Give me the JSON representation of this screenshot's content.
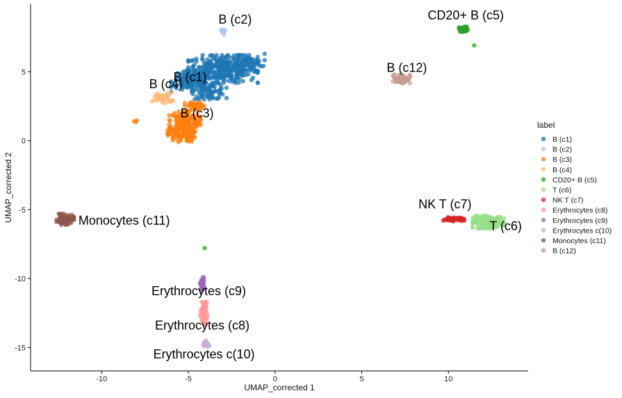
{
  "chart_data": {
    "type": "scatter",
    "xlabel": "UMAP_corrected 1",
    "ylabel": "UMAP_corrected 2",
    "xlim": [
      -14.1,
      14.6
    ],
    "ylim": [
      -16.7,
      9.9
    ],
    "x_ticks": [
      -10,
      -5,
      0,
      5,
      10
    ],
    "y_ticks": [
      -15,
      -10,
      -5,
      0,
      5
    ],
    "grid": false,
    "legend_title": "label",
    "legend_position": "right",
    "clusters": [
      {
        "name": "B (c1)",
        "color": "#1f77b4",
        "label": "B (c1)",
        "label_pos": [
          -4.9,
          4.3
        ],
        "blobs": [
          [
            -3.0,
            5.2,
            2.0,
            1.0,
            320
          ],
          [
            -4.8,
            4.3,
            1.2,
            0.8,
            140
          ],
          [
            -3.8,
            3.6,
            1.0,
            0.6,
            80
          ],
          [
            -1.8,
            5.7,
            1.2,
            0.6,
            60
          ]
        ]
      },
      {
        "name": "B (c2)",
        "color": "#aec7e8",
        "label": "B (c2)",
        "label_pos": [
          -2.3,
          8.5
        ],
        "blobs": [
          [
            -3.0,
            7.9,
            0.15,
            0.25,
            12
          ]
        ]
      },
      {
        "name": "B (c3)",
        "color": "#ff7f0e",
        "label": "B (c3)",
        "label_pos": [
          -4.5,
          1.7
        ],
        "blobs": [
          [
            -5.2,
            1.4,
            0.9,
            0.8,
            160
          ],
          [
            -5.4,
            0.4,
            0.8,
            0.5,
            70
          ],
          [
            -4.6,
            2.5,
            0.6,
            0.3,
            40
          ],
          [
            -8.0,
            1.4,
            0.2,
            0.1,
            3
          ]
        ]
      },
      {
        "name": "B (c4)",
        "color": "#ffbb78",
        "label": "B (c4)",
        "label_pos": [
          -6.3,
          3.8
        ],
        "blobs": [
          [
            -6.5,
            3.1,
            0.6,
            0.4,
            45
          ]
        ]
      },
      {
        "name": "CD20+ B (c5)",
        "color": "#2ca02c",
        "label": "CD20+ B (c5)",
        "label_pos": [
          11.0,
          8.8
        ],
        "blobs": [
          [
            10.9,
            8.1,
            0.3,
            0.2,
            35
          ],
          [
            11.5,
            6.9,
            0.05,
            0.05,
            1
          ],
          [
            -4.1,
            -7.8,
            0.05,
            0.05,
            1
          ]
        ]
      },
      {
        "name": "T (c6)",
        "color": "#98df8a",
        "label": "T (c6)",
        "label_pos": [
          13.3,
          -6.5
        ],
        "blobs": [
          [
            12.3,
            -5.9,
            0.9,
            0.45,
            200
          ]
        ]
      },
      {
        "name": "NK T (c7)",
        "color": "#d62728",
        "label": "NK T (c7)",
        "label_pos": [
          9.8,
          -4.9
        ],
        "blobs": [
          [
            10.3,
            -5.7,
            0.6,
            0.15,
            55
          ]
        ]
      },
      {
        "name": "Erythrocytes (c8)",
        "color": "#ff9896",
        "label": "Erythrocytes (c8)",
        "label_pos": [
          -4.2,
          -13.7
        ],
        "blobs": [
          [
            -4.1,
            -12.5,
            0.2,
            0.8,
            60
          ]
        ]
      },
      {
        "name": "Erythrocytes (c9)",
        "color": "#9467bd",
        "label": "Erythrocytes (c9)",
        "label_pos": [
          -4.4,
          -11.2
        ],
        "blobs": [
          [
            -4.2,
            -10.4,
            0.12,
            0.5,
            40
          ]
        ]
      },
      {
        "name": "Erythrocytes c(10)",
        "color": "#c5b0d5",
        "label": "Erythrocytes c(10)",
        "label_pos": [
          -4.1,
          -15.8
        ],
        "blobs": [
          [
            -4.0,
            -14.8,
            0.2,
            0.3,
            25
          ]
        ]
      },
      {
        "name": "Monocytes (c11)",
        "color": "#8c564b",
        "label": "Monocytes (c11)",
        "label_pos": [
          -8.7,
          -6.1
        ],
        "blobs": [
          [
            -12.1,
            -5.7,
            0.5,
            0.4,
            60
          ]
        ]
      },
      {
        "name": "B (c12)",
        "color": "#c49c94",
        "label": "B (c12)",
        "label_pos": [
          7.6,
          5.0
        ],
        "blobs": [
          [
            7.3,
            4.5,
            0.5,
            0.35,
            70
          ]
        ]
      }
    ]
  }
}
